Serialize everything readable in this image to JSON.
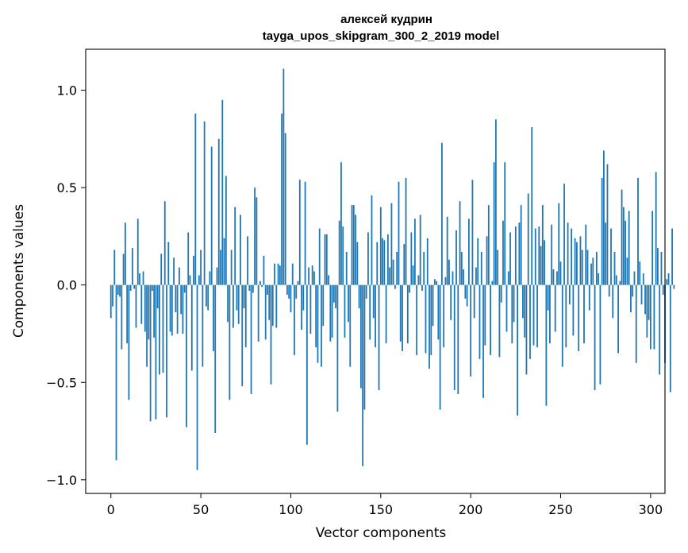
{
  "chart_data": {
    "type": "bar",
    "title_line1": "алексей кудрин",
    "title_line2": "tayga_upos_skipgram_300_2_2019 model",
    "xlabel": "Vector components",
    "ylabel": "Components values",
    "xlim": [
      -14,
      308
    ],
    "ylim": [
      -1.07,
      1.21
    ],
    "xticks": [
      0,
      50,
      100,
      150,
      200,
      250,
      300
    ],
    "yticks": [
      -1.0,
      -0.5,
      0.0,
      0.5,
      1.0
    ],
    "xtick_labels": [
      "0",
      "50",
      "100",
      "150",
      "200",
      "250",
      "300"
    ],
    "ytick_labels": [
      "−1.0",
      "−0.5",
      "0.0",
      "0.5",
      "1.0"
    ],
    "bar_color": "#1f77b4",
    "grid": false,
    "values": [
      -0.17,
      -0.11,
      0.18,
      -0.9,
      -0.05,
      -0.06,
      -0.33,
      0.16,
      0.32,
      -0.3,
      -0.59,
      -0.03,
      0.19,
      -0.02,
      -0.22,
      0.34,
      0.06,
      -0.2,
      0.07,
      -0.24,
      -0.42,
      -0.28,
      -0.7,
      -0.03,
      -0.27,
      -0.69,
      -0.12,
      -0.46,
      0.16,
      -0.45,
      0.43,
      -0.68,
      0.22,
      -0.24,
      -0.26,
      0.14,
      -0.14,
      -0.25,
      0.09,
      -0.15,
      -0.25,
      -0.04,
      -0.73,
      0.27,
      0.05,
      -0.44,
      0.15,
      0.88,
      -0.95,
      0.05,
      0.18,
      -0.42,
      0.84,
      -0.11,
      -0.13,
      0.07,
      0.71,
      -0.34,
      -0.76,
      0.09,
      0.75,
      0.18,
      0.95,
      0.24,
      0.56,
      -0.19,
      -0.59,
      0.18,
      -0.22,
      0.4,
      -0.13,
      -0.2,
      0.36,
      -0.52,
      -0.12,
      -0.32,
      0.25,
      -0.03,
      -0.56,
      -0.04,
      0.5,
      0.45,
      -0.29,
      0.02,
      -0.01,
      0.15,
      -0.28,
      -0.05,
      -0.18,
      -0.51,
      -0.21,
      0.11,
      -0.22,
      0.11,
      0.1,
      0.88,
      1.11,
      0.78,
      -0.05,
      -0.07,
      -0.14,
      0.11,
      -0.36,
      -0.07,
      0.02,
      0.54,
      -0.23,
      -0.13,
      0.53,
      -0.82,
      0.09,
      -0.25,
      0.1,
      0.07,
      -0.32,
      -0.4,
      0.29,
      -0.42,
      -0.21,
      0.26,
      0.26,
      0.05,
      -0.29,
      -0.27,
      -0.09,
      -0.12,
      -0.65,
      0.33,
      0.63,
      0.3,
      -0.27,
      0.17,
      -0.19,
      -0.42,
      0.41,
      0.41,
      0.36,
      0.22,
      -0.12,
      -0.53,
      -0.93,
      -0.64,
      -0.07,
      0.27,
      -0.28,
      0.46,
      -0.17,
      -0.32,
      0.22,
      -0.54,
      0.4,
      0.24,
      0.23,
      -0.3,
      0.26,
      0.09,
      0.42,
      0.13,
      -0.02,
      0.17,
      0.53,
      -0.29,
      -0.34,
      0.21,
      0.55,
      -0.3,
      -0.04,
      0.27,
      0.1,
      0.34,
      -0.36,
      0.05,
      0.36,
      -0.03,
      0.17,
      -0.35,
      0.24,
      -0.43,
      -0.36,
      -0.21,
      0.03,
      0.02,
      -0.28,
      -0.64,
      0.73,
      -0.32,
      0.04,
      0.35,
      0.13,
      -0.18,
      0.07,
      -0.54,
      0.28,
      -0.56,
      0.43,
      0.17,
      0.08,
      -0.07,
      -0.11,
      0.34,
      -0.47,
      0.54,
      -0.17,
      0.09,
      0.24,
      -0.38,
      0.17,
      -0.58,
      -0.31,
      0.25,
      0.41,
      -0.36,
      0.02,
      0.63,
      0.85,
      0.18,
      -0.37,
      -0.09,
      0.33,
      0.63,
      -0.24,
      0.07,
      0.27,
      -0.3,
      -0.19,
      0.3,
      -0.67,
      0.32,
      0.41,
      -0.17,
      -0.27,
      -0.46,
      0.47,
      -0.38,
      0.81,
      -0.31,
      0.29,
      -0.32,
      0.3,
      0.2,
      0.41,
      0.23,
      -0.62,
      -0.13,
      -0.3,
      0.31,
      0.08,
      -0.24,
      0.07,
      0.42,
      0.12,
      -0.42,
      0.52,
      -0.32,
      0.32,
      -0.1,
      0.29,
      -0.26,
      0.24,
      0.22,
      -0.34,
      0.25,
      0.18,
      -0.3,
      0.31,
      0.18,
      -0.13,
      0.11,
      0.14,
      -0.54,
      0.17,
      0.06,
      -0.51,
      0.55,
      0.69,
      0.32,
      0.62,
      -0.06,
      0.29,
      -0.17,
      0.17,
      0.05,
      -0.35,
      0.02,
      0.49,
      0.4,
      0.33,
      0.14,
      0.38,
      -0.14,
      -0.06,
      0.07,
      -0.4,
      0.55,
      0.12,
      -0.1,
      0.06,
      -0.15,
      -0.27,
      -0.18,
      -0.33,
      0.38,
      -0.33,
      0.58,
      0.19,
      -0.46,
      0.17,
      -0.05,
      -0.4,
      0.03,
      0.06,
      -0.55,
      0.29,
      -0.02
    ]
  }
}
